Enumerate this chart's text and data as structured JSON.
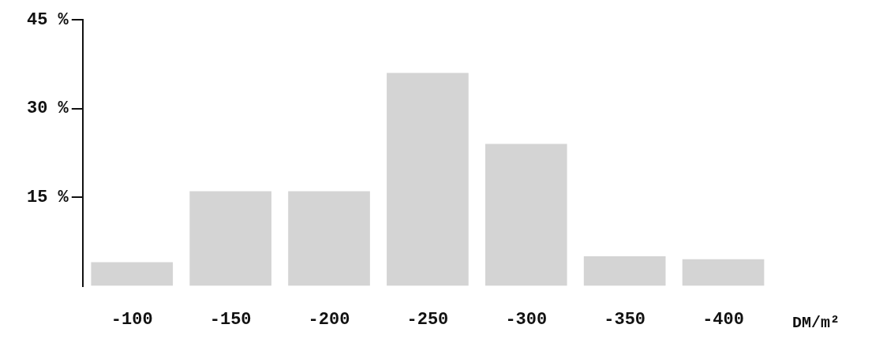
{
  "chart_data": {
    "type": "bar",
    "xlabel": "DM/m²",
    "categories": [
      "-100",
      "-150",
      "-200",
      "-250",
      "-300",
      "-350",
      "-400"
    ],
    "values": [
      4,
      16,
      16,
      36,
      24,
      5,
      4.5
    ],
    "color": "#d4d4d4",
    "ylim": [
      0,
      45
    ],
    "yticks": [
      {
        "value": 15,
        "label": "15 %"
      },
      {
        "value": 30,
        "label": "30 %"
      },
      {
        "value": 45,
        "label": "45 %"
      }
    ],
    "grid": false,
    "legend": false
  }
}
